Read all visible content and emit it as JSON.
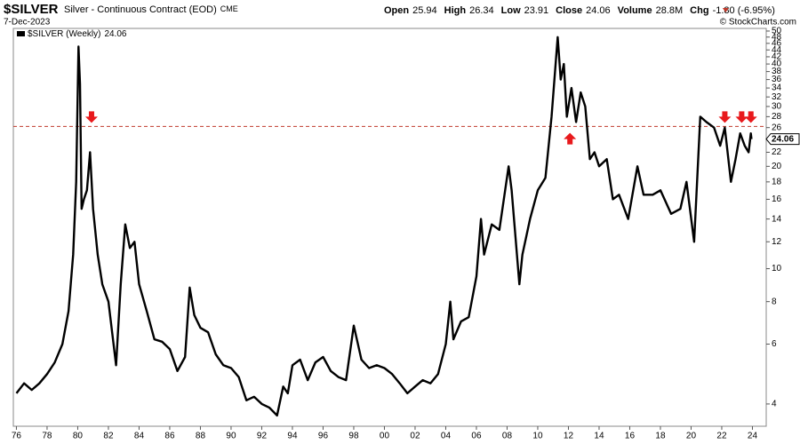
{
  "chart_data": {
    "type": "line",
    "title": "$SILVER",
    "subtitle": "Silver - Continuous Contract (EOD)",
    "exchange": "CME",
    "date": "7-Dec-2023",
    "quote": [
      {
        "label": "Open",
        "value": 25.94
      },
      {
        "label": "High",
        "value": 26.34
      },
      {
        "label": "Low",
        "value": 23.91
      },
      {
        "label": "Close",
        "value": 24.06
      },
      {
        "label": "Volume",
        "value": "28.8M"
      },
      {
        "label": "Chg",
        "value": "-1.80 (-6.95%)"
      }
    ],
    "credit": "© StockCharts.com",
    "log_scale": true,
    "grid": false,
    "x": [
      1976.0,
      1976.5,
      1977.0,
      1977.5,
      1978.0,
      1978.5,
      1979.0,
      1979.4,
      1979.7,
      1979.9,
      1980.05,
      1980.15,
      1980.25,
      1980.4,
      1980.6,
      1980.8,
      1981.0,
      1981.3,
      1981.6,
      1982.0,
      1982.5,
      1982.8,
      1983.1,
      1983.4,
      1983.7,
      1984.0,
      1984.5,
      1985.0,
      1985.5,
      1986.0,
      1986.5,
      1987.0,
      1987.3,
      1987.6,
      1988.0,
      1988.5,
      1989.0,
      1989.5,
      1990.0,
      1990.5,
      1991.0,
      1991.5,
      1992.0,
      1992.5,
      1993.0,
      1993.4,
      1993.7,
      1994.0,
      1994.5,
      1995.0,
      1995.5,
      1996.0,
      1996.5,
      1997.0,
      1997.5,
      1998.0,
      1998.5,
      1999.0,
      1999.5,
      2000.0,
      2000.5,
      2001.0,
      2001.5,
      2002.0,
      2002.5,
      2003.0,
      2003.5,
      2004.0,
      2004.3,
      2004.5,
      2005.0,
      2005.5,
      2006.0,
      2006.3,
      2006.5,
      2007.0,
      2007.5,
      2008.1,
      2008.3,
      2008.8,
      2009.0,
      2009.5,
      2010.0,
      2010.5,
      2010.9,
      2011.3,
      2011.5,
      2011.7,
      2011.9,
      2012.2,
      2012.5,
      2012.8,
      2013.1,
      2013.4,
      2013.7,
      2014.0,
      2014.5,
      2014.9,
      2015.3,
      2015.9,
      2016.5,
      2016.9,
      2017.5,
      2018.0,
      2018.7,
      2019.3,
      2019.7,
      2020.2,
      2020.6,
      2021.0,
      2021.5,
      2021.9,
      2022.2,
      2022.6,
      2022.9,
      2023.2,
      2023.5,
      2023.75,
      2023.9,
      2023.94
    ],
    "series": [
      {
        "name": "$SILVER (Weekly)",
        "color": "#000000",
        "values": [
          4.3,
          4.6,
          4.4,
          4.6,
          4.9,
          5.3,
          6.0,
          7.5,
          11,
          18,
          45,
          35,
          15,
          16,
          17,
          22,
          15,
          11,
          9,
          8,
          5.2,
          9,
          13.5,
          11.5,
          12,
          9,
          7.5,
          6.2,
          6.1,
          5.8,
          5.0,
          5.5,
          8.8,
          7.3,
          6.7,
          6.5,
          5.6,
          5.2,
          5.1,
          4.8,
          4.1,
          4.2,
          4.0,
          3.9,
          3.7,
          4.5,
          4.3,
          5.2,
          5.4,
          4.7,
          5.3,
          5.5,
          5.0,
          4.8,
          4.7,
          6.8,
          5.4,
          5.1,
          5.2,
          5.1,
          4.9,
          4.6,
          4.3,
          4.5,
          4.7,
          4.6,
          4.9,
          6.0,
          8.0,
          6.2,
          7.0,
          7.2,
          9.5,
          14,
          11,
          13.5,
          13,
          20,
          17,
          9,
          11,
          14,
          17,
          18.5,
          28,
          48,
          36,
          40,
          28,
          34,
          27,
          33,
          30,
          21,
          22,
          20,
          21,
          16,
          16.5,
          14,
          20,
          16.5,
          16.5,
          17,
          14.5,
          15,
          18,
          12,
          28,
          27,
          26,
          23,
          26,
          18,
          21,
          25,
          23,
          22,
          25,
          24.06
        ]
      }
    ],
    "xlim": [
      1975.8,
      2024.9
    ],
    "xticks": [
      {
        "value": 1976,
        "label": "76"
      },
      {
        "value": 1978,
        "label": "78"
      },
      {
        "value": 1980,
        "label": "80"
      },
      {
        "value": 1982,
        "label": "82"
      },
      {
        "value": 1984,
        "label": "84"
      },
      {
        "value": 1986,
        "label": "86"
      },
      {
        "value": 1988,
        "label": "88"
      },
      {
        "value": 1990,
        "label": "90"
      },
      {
        "value": 1992,
        "label": "92"
      },
      {
        "value": 1994,
        "label": "94"
      },
      {
        "value": 1996,
        "label": "96"
      },
      {
        "value": 1998,
        "label": "98"
      },
      {
        "value": 2000,
        "label": "00"
      },
      {
        "value": 2002,
        "label": "02"
      },
      {
        "value": 2004,
        "label": "04"
      },
      {
        "value": 2006,
        "label": "06"
      },
      {
        "value": 2008,
        "label": "08"
      },
      {
        "value": 2010,
        "label": "10"
      },
      {
        "value": 2012,
        "label": "12"
      },
      {
        "value": 2014,
        "label": "14"
      },
      {
        "value": 2016,
        "label": "16"
      },
      {
        "value": 2018,
        "label": "18"
      },
      {
        "value": 2020,
        "label": "20"
      },
      {
        "value": 2022,
        "label": "22"
      },
      {
        "value": 2024,
        "label": "24"
      }
    ],
    "ylim": [
      3.44,
      50.9
    ],
    "yticks": [
      4,
      6,
      8,
      10,
      12,
      14,
      16,
      18,
      20,
      22,
      26,
      28,
      30,
      32,
      34,
      36,
      38,
      40,
      42,
      44,
      46,
      48,
      50
    ],
    "hline": 26.2,
    "hline_color": "#c0392b",
    "arrow_color": "#e8191c",
    "down_arrows": [
      {
        "x": 1980.9,
        "y": 27.5
      },
      {
        "x": 2022.2,
        "y": 27.5
      },
      {
        "x": 2023.3,
        "y": 27.5
      },
      {
        "x": 2023.9,
        "y": 27.5
      }
    ],
    "up_arrows": [
      {
        "x": 2012.1,
        "y": 24.5
      }
    ]
  }
}
